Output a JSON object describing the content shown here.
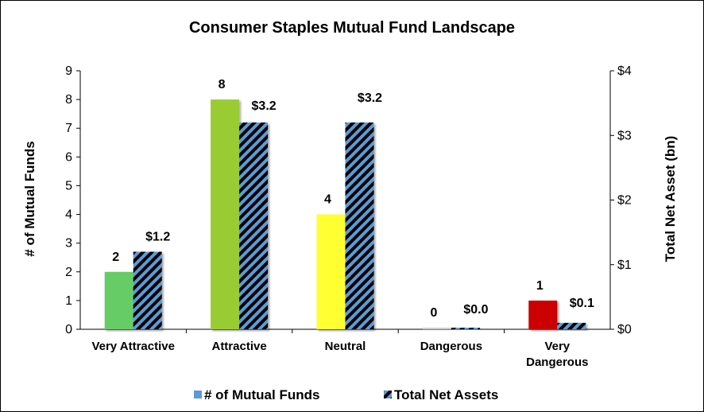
{
  "chart_data": {
    "type": "bar",
    "title": "Consumer Staples Mutual Fund Landscape",
    "categories": [
      "Very Attractive",
      "Attractive",
      "Neutral",
      "Dangerous",
      "Very Dangerous"
    ],
    "category_lines": [
      [
        "Very Attractive"
      ],
      [
        "Attractive"
      ],
      [
        "Neutral"
      ],
      [
        "Dangerous"
      ],
      [
        "Very",
        "Dangerous"
      ]
    ],
    "series": [
      {
        "name": "# of Mutual Funds",
        "axis": "left",
        "values": [
          2,
          8,
          4,
          0,
          1
        ],
        "labels": [
          "2",
          "8",
          "4",
          "0",
          "1"
        ],
        "colors": [
          "#66cc66",
          "#99cc33",
          "#ffff33",
          "#cccccc",
          "#cc0000"
        ]
      },
      {
        "name": "Total Net Assets",
        "axis": "right",
        "values": [
          1.2,
          3.2,
          3.2,
          0.0,
          0.1
        ],
        "labels": [
          "$1.2",
          "$3.2",
          "$3.2",
          "$0.0",
          "$0.1"
        ],
        "pattern_colors": [
          "#000000",
          "#5b9bd5"
        ]
      }
    ],
    "ylabel": "# of Mutual Funds",
    "y2label": "Total Net Asset (bn)",
    "ylim": [
      0,
      9
    ],
    "y2lim": [
      0,
      4
    ],
    "yticks": [
      "0",
      "1",
      "2",
      "3",
      "4",
      "5",
      "6",
      "7",
      "8",
      "9"
    ],
    "y2ticks": [
      "$0",
      "$1",
      "$2",
      "$3",
      "$4"
    ],
    "legend_position": "bottom",
    "grid": false
  }
}
